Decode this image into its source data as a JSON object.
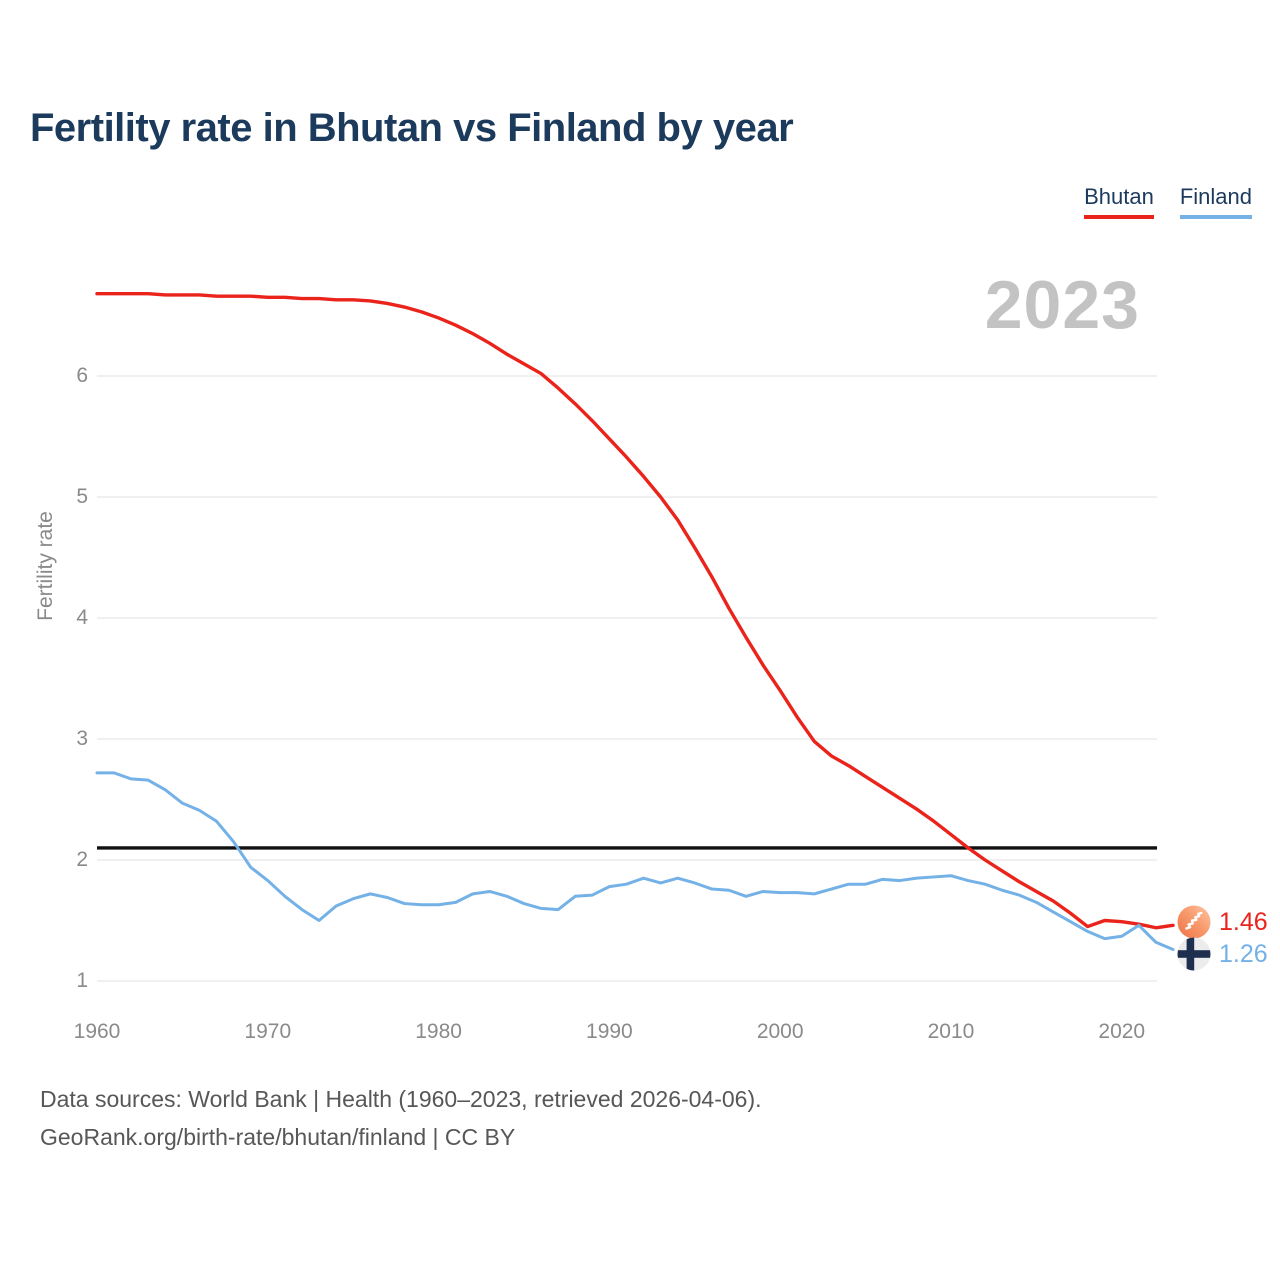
{
  "header": {
    "title": "Fertility rate in Bhutan vs Finland by year"
  },
  "legend": [
    {
      "label": "Bhutan",
      "color": "#ea231b"
    },
    {
      "label": "Finland",
      "color": "#74b1e6"
    }
  ],
  "watermark": "2023",
  "chart_data": {
    "type": "line",
    "title": "Fertility rate in Bhutan vs Finland by year",
    "xlabel": "",
    "ylabel": "Fertility rate",
    "xlim": [
      1960,
      2023
    ],
    "ylim": [
      1,
      6.9
    ],
    "grid": true,
    "legend_position": "top-right",
    "yticks": [
      1,
      2,
      3,
      4,
      5,
      6
    ],
    "xticks": [
      1960,
      1970,
      1980,
      1990,
      2000,
      2010,
      2020
    ],
    "reference_line": {
      "value": 2.1,
      "color": "#111111"
    },
    "x": [
      1960,
      1961,
      1962,
      1963,
      1964,
      1965,
      1966,
      1967,
      1968,
      1969,
      1970,
      1971,
      1972,
      1973,
      1974,
      1975,
      1976,
      1977,
      1978,
      1979,
      1980,
      1981,
      1982,
      1983,
      1984,
      1985,
      1986,
      1987,
      1988,
      1989,
      1990,
      1991,
      1992,
      1993,
      1994,
      1995,
      1996,
      1997,
      1998,
      1999,
      2000,
      2001,
      2002,
      2003,
      2004,
      2005,
      2006,
      2007,
      2008,
      2009,
      2010,
      2011,
      2012,
      2013,
      2014,
      2015,
      2016,
      2017,
      2018,
      2019,
      2020,
      2021,
      2022,
      2023
    ],
    "series": [
      {
        "name": "Bhutan",
        "color": "#ea231b",
        "line_width": 3.4,
        "values": [
          6.68,
          6.68,
          6.68,
          6.68,
          6.67,
          6.67,
          6.67,
          6.66,
          6.66,
          6.66,
          6.65,
          6.65,
          6.64,
          6.64,
          6.63,
          6.63,
          6.62,
          6.6,
          6.57,
          6.53,
          6.48,
          6.42,
          6.35,
          6.27,
          6.18,
          6.1,
          6.02,
          5.9,
          5.77,
          5.63,
          5.48,
          5.33,
          5.17,
          5.0,
          4.81,
          4.58,
          4.34,
          4.08,
          3.84,
          3.61,
          3.4,
          3.18,
          2.98,
          2.86,
          2.78,
          2.69,
          2.6,
          2.51,
          2.42,
          2.32,
          2.21,
          2.1,
          2.0,
          1.91,
          1.82,
          1.74,
          1.66,
          1.56,
          1.45,
          1.5,
          1.49,
          1.47,
          1.44,
          1.46
        ]
      },
      {
        "name": "Finland",
        "color": "#74b1e6",
        "line_width": 3.0,
        "values": [
          2.72,
          2.72,
          2.67,
          2.66,
          2.58,
          2.47,
          2.41,
          2.32,
          2.15,
          1.94,
          1.83,
          1.7,
          1.59,
          1.5,
          1.62,
          1.68,
          1.72,
          1.69,
          1.64,
          1.63,
          1.63,
          1.65,
          1.72,
          1.74,
          1.7,
          1.64,
          1.6,
          1.59,
          1.7,
          1.71,
          1.78,
          1.8,
          1.85,
          1.81,
          1.85,
          1.81,
          1.76,
          1.75,
          1.7,
          1.74,
          1.73,
          1.73,
          1.72,
          1.76,
          1.8,
          1.8,
          1.84,
          1.83,
          1.85,
          1.86,
          1.87,
          1.83,
          1.8,
          1.75,
          1.71,
          1.65,
          1.57,
          1.49,
          1.41,
          1.35,
          1.37,
          1.46,
          1.32,
          1.26
        ]
      }
    ]
  },
  "end_labels": [
    {
      "series": "Bhutan",
      "value": "1.46",
      "color": "#ea231b",
      "icon": "bhutan-flag"
    },
    {
      "series": "Finland",
      "value": "1.26",
      "color": "#74b1e6",
      "icon": "finland-flag"
    }
  ],
  "footer": {
    "line1": "Data sources: World Bank | Health (1960–2023, retrieved 2026-04-06).",
    "line2": "GeoRank.org/birth-rate/bhutan/finland | CC BY"
  }
}
